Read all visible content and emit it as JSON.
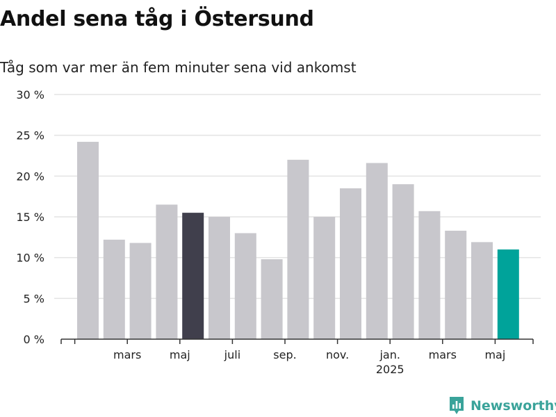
{
  "header": {
    "title": "Andel sena tåg i Östersund",
    "subtitle": "Tåg som var mer än fem minuter sena vid ankomst"
  },
  "brand": {
    "name": "Newsworthy",
    "color": "#3aa39a"
  },
  "chart_data": {
    "type": "bar",
    "title": "Andel sena tåg i Östersund",
    "subtitle": "Tåg som var mer än fem minuter sena vid ankomst",
    "xlabel": "",
    "ylabel": "",
    "ylim": [
      0,
      30
    ],
    "y_ticks": [
      0,
      5,
      10,
      15,
      20,
      25,
      30
    ],
    "y_tick_labels": [
      "0 %",
      "5 %",
      "10 %",
      "15 %",
      "20 %",
      "25 %",
      "30 %"
    ],
    "grid": true,
    "legend": "none",
    "categories": [
      "2024-02",
      "2024-03",
      "2024-04",
      "2024-05",
      "2024-06",
      "2024-07",
      "2024-08",
      "2024-09",
      "2024-10",
      "2024-11",
      "2024-12",
      "2025-01",
      "2025-02",
      "2025-03",
      "2025-04",
      "2025-05",
      "2025-06"
    ],
    "values": [
      24.2,
      12.2,
      11.8,
      16.5,
      15.5,
      15.0,
      13.0,
      9.8,
      22.0,
      15.0,
      18.5,
      21.6,
      19.0,
      15.7,
      13.3,
      11.9,
      11.0
    ],
    "bar_colors": [
      "#c8c7cc",
      "#c8c7cc",
      "#c8c7cc",
      "#c8c7cc",
      "#403f4c",
      "#c8c7cc",
      "#c8c7cc",
      "#c8c7cc",
      "#c8c7cc",
      "#c8c7cc",
      "#c8c7cc",
      "#c8c7cc",
      "#c8c7cc",
      "#c8c7cc",
      "#c8c7cc",
      "#c8c7cc",
      "#00a39a"
    ],
    "x_tick_labels": [
      {
        "after_bar": 1,
        "label": "mars",
        "sub": ""
      },
      {
        "after_bar": 3,
        "label": "maj",
        "sub": ""
      },
      {
        "after_bar": 5,
        "label": "juli",
        "sub": ""
      },
      {
        "after_bar": 7,
        "label": "sep.",
        "sub": ""
      },
      {
        "after_bar": 9,
        "label": "nov.",
        "sub": ""
      },
      {
        "after_bar": 11,
        "label": "jan.",
        "sub": "2025"
      },
      {
        "after_bar": 13,
        "label": "mars",
        "sub": ""
      },
      {
        "after_bar": 15,
        "label": "maj",
        "sub": ""
      }
    ],
    "colors": {
      "default_bar": "#c8c7cc",
      "highlight_dark": "#403f4c",
      "highlight_current": "#00a39a",
      "grid": "#e3e3e3",
      "axis": "#333333"
    }
  }
}
